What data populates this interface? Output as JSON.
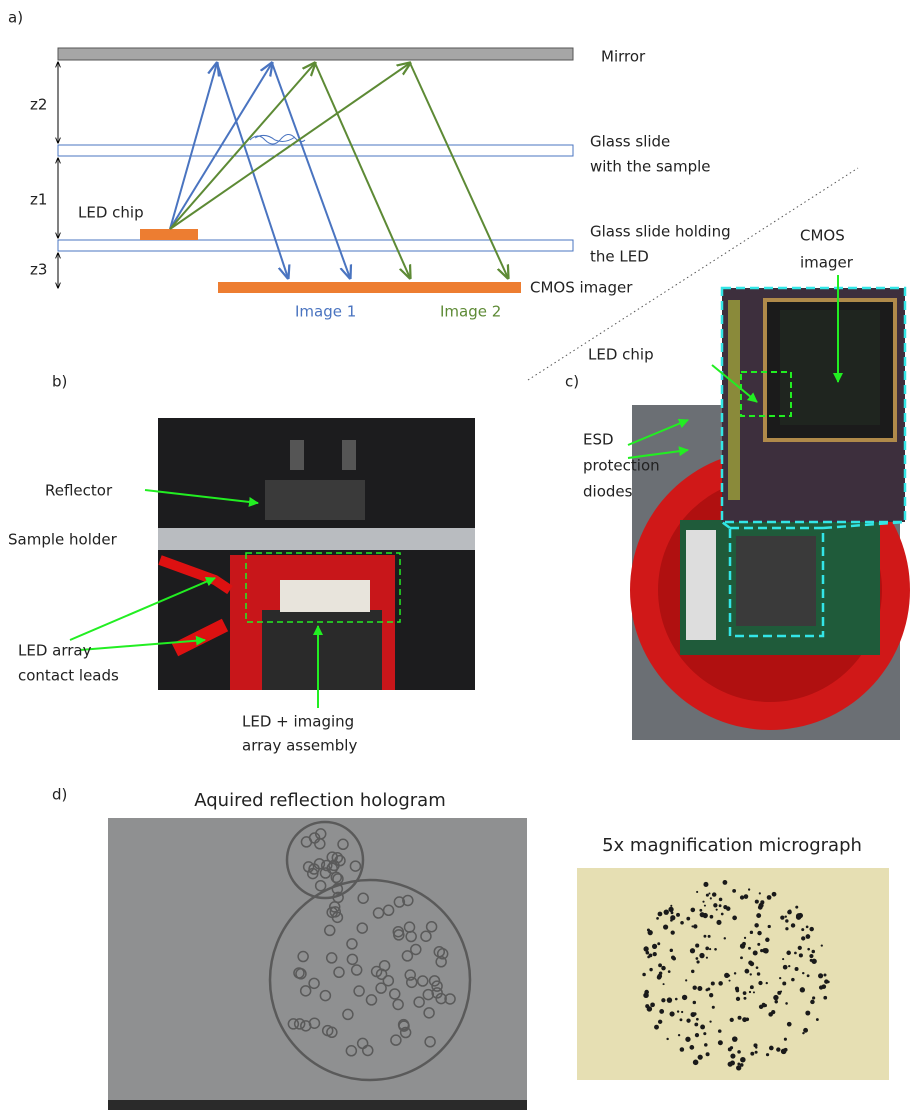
{
  "panel_a": {
    "label": "a)",
    "mirror": "Mirror",
    "z2": "z2",
    "z1": "z1",
    "z3": "z3",
    "sample_slide": [
      "Glass slide",
      "with the sample"
    ],
    "led_slide": [
      "Glass slide holding",
      "the LED"
    ],
    "led_chip": "LED chip",
    "cmos_imager": "CMOS imager",
    "image_1": "Image 1",
    "image_2": "Image 2"
  },
  "panel_b": {
    "label": "b)",
    "reflector": "Reflector",
    "sample_holder": "Sample holder",
    "contact_leads": [
      "LED array",
      "contact leads"
    ],
    "assembly": [
      "LED + imaging",
      "array assembly"
    ]
  },
  "panel_c": {
    "label": "c)",
    "cmos_imager": [
      "CMOS",
      "imager"
    ],
    "led_chip": "LED chip",
    "esd_diodes": [
      "ESD",
      "protection",
      "diodes"
    ]
  },
  "panel_d": {
    "label": "d)",
    "hologram_title": "Aquired reflection hologram",
    "micrograph_title": "5x magnification micrograph"
  }
}
